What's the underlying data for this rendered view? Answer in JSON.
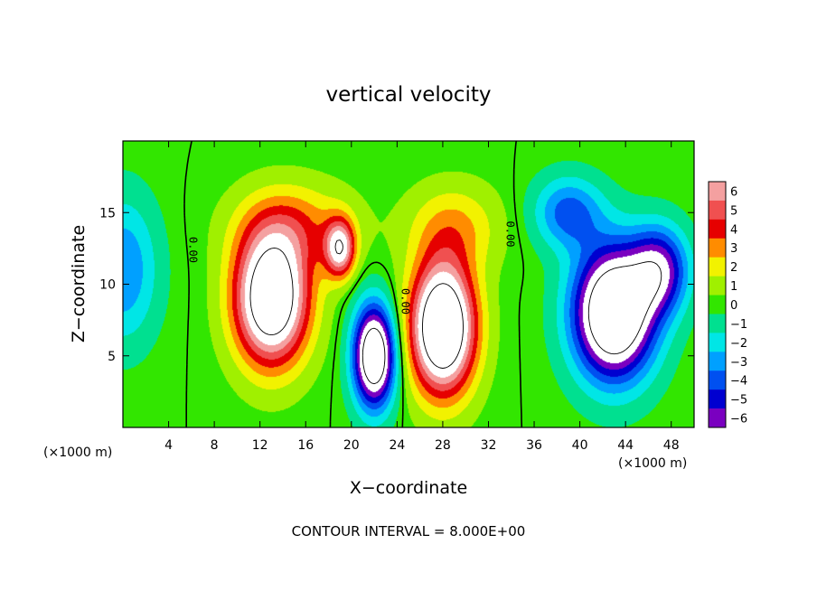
{
  "chart_data": {
    "type": "heatmap",
    "title": "vertical velocity",
    "xlabel": "X−coordinate",
    "ylabel": "Z−coordinate",
    "x_unit": "(×1000 m)",
    "x_unit_right": "(×1000 m)",
    "xlim": [
      0,
      50
    ],
    "ylim": [
      0,
      20
    ],
    "x_ticks": [
      {
        "value": 4,
        "label": "4"
      },
      {
        "value": 8,
        "label": "8"
      },
      {
        "value": 12,
        "label": "12"
      },
      {
        "value": 16,
        "label": "16"
      },
      {
        "value": 20,
        "label": "20"
      },
      {
        "value": 24,
        "label": "24"
      },
      {
        "value": 28,
        "label": "28"
      },
      {
        "value": 32,
        "label": "32"
      },
      {
        "value": 36,
        "label": "36"
      },
      {
        "value": 40,
        "label": "40"
      },
      {
        "value": 44,
        "label": "44"
      },
      {
        "value": 48,
        "label": "48"
      }
    ],
    "y_ticks": [
      {
        "value": 5,
        "label": "5"
      },
      {
        "value": 10,
        "label": "10"
      },
      {
        "value": 15,
        "label": "15"
      }
    ],
    "colorbar": {
      "levels": [
        {
          "label": "6",
          "color": "#f4a0a0"
        },
        {
          "label": "5",
          "color": "#f05050"
        },
        {
          "label": "4",
          "color": "#e60000"
        },
        {
          "label": "3",
          "color": "#ff8c00"
        },
        {
          "label": "2",
          "color": "#f2f200"
        },
        {
          "label": "1",
          "color": "#a0f000"
        },
        {
          "label": "0",
          "color": "#32e600"
        },
        {
          "label": "−1",
          "color": "#00e090"
        },
        {
          "label": "−2",
          "color": "#00e6e6"
        },
        {
          "label": "−3",
          "color": "#00a0ff"
        },
        {
          "label": "−4",
          "color": "#0050f0"
        },
        {
          "label": "−5",
          "color": "#0000d0"
        },
        {
          "label": "−6",
          "color": "#7a00c0"
        }
      ]
    },
    "contour_label": "0.00",
    "footer": "CONTOUR INTERVAL = 8.000E+00",
    "features": [
      {
        "x": 13,
        "z": 9,
        "sx": 3.2,
        "sz": 4.5,
        "w": 11
      },
      {
        "x": 19,
        "z": 12.5,
        "sx": 1.3,
        "sz": 2.0,
        "w": 7
      },
      {
        "x": 28,
        "z": 7,
        "sx": 2.8,
        "sz": 4.5,
        "w": 12
      },
      {
        "x": 22,
        "z": 5,
        "sx": 1.8,
        "sz": 3.5,
        "w": -11
      },
      {
        "x": 43,
        "z": 8,
        "sx": 3.5,
        "sz": 4.5,
        "w": -12
      },
      {
        "x": 47,
        "z": 11,
        "sx": 2.5,
        "sz": 3.0,
        "w": -6
      },
      {
        "x": 0,
        "z": 11,
        "sx": 3.0,
        "sz": 5.0,
        "w": -3.5
      },
      {
        "x": 39,
        "z": 15,
        "sx": 3.0,
        "sz": 2.5,
        "w": -4
      },
      {
        "x": 15,
        "z": 14,
        "sx": 5.0,
        "sz": 3.0,
        "w": 3
      },
      {
        "x": 29,
        "z": 14,
        "sx": 4.0,
        "sz": 3.0,
        "w": 2.5
      }
    ]
  }
}
